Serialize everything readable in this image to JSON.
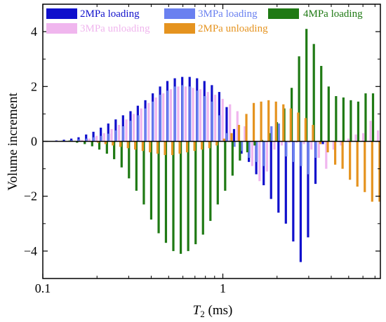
{
  "chart_data": {
    "type": "bar",
    "xlabel_italic": "T",
    "xlabel_sub": "2",
    "xlabel_unit": " (ms)",
    "ylabel": "Volume increment",
    "x_scale": "log",
    "xlim": [
      0.1,
      7.5
    ],
    "ylim": [
      -5,
      5
    ],
    "x_ticks": [
      {
        "value": 0.1,
        "label": "0.1"
      },
      {
        "value": 1,
        "label": "1"
      }
    ],
    "y_ticks": [
      {
        "value": -4,
        "label": "−4"
      },
      {
        "value": -2,
        "label": "−2"
      },
      {
        "value": 0,
        "label": "0"
      },
      {
        "value": 2,
        "label": "2"
      },
      {
        "value": 4,
        "label": "4"
      }
    ],
    "legend_position": "top",
    "series": [
      {
        "name": "2MPa loading",
        "color": "#1010cc",
        "x": [
          0.119,
          0.131,
          0.144,
          0.158,
          0.174,
          0.191,
          0.21,
          0.231,
          0.254,
          0.279,
          0.307,
          0.337,
          0.371,
          0.408,
          0.448,
          0.492,
          0.541,
          0.595,
          0.654,
          0.719,
          0.79,
          0.869,
          0.955,
          1.05,
          1.154,
          1.269,
          1.395,
          1.533,
          1.686,
          1.853,
          2.037,
          2.239,
          2.461,
          2.706,
          2.974,
          3.27,
          3.594
        ],
        "values": [
          0.03,
          0.06,
          0.1,
          0.15,
          0.25,
          0.35,
          0.5,
          0.65,
          0.8,
          0.95,
          1.1,
          1.3,
          1.5,
          1.75,
          2.0,
          2.2,
          2.3,
          2.35,
          2.35,
          2.3,
          2.2,
          2.05,
          1.8,
          1.25,
          0.45,
          -0.45,
          -0.75,
          -1.2,
          -1.6,
          -2.1,
          -2.6,
          -3.0,
          -3.65,
          -4.4,
          -3.5,
          -1.55,
          -0.1
        ]
      },
      {
        "name": "3MPa loading",
        "color": "#6a80f0",
        "x": [
          0.132,
          0.145,
          0.159,
          0.175,
          0.192,
          0.211,
          0.232,
          0.255,
          0.28,
          0.308,
          0.339,
          0.372,
          0.409,
          0.45,
          0.494,
          0.543,
          0.597,
          0.657,
          0.722,
          0.794,
          0.873,
          0.959,
          1.055,
          1.16,
          1.275,
          1.401,
          1.541,
          1.694,
          1.862,
          2.047,
          2.25,
          2.473,
          2.719,
          2.988,
          3.285
        ],
        "values": [
          0.02,
          0.04,
          0.07,
          0.1,
          0.15,
          0.2,
          0.28,
          0.4,
          0.55,
          0.75,
          0.95,
          1.2,
          1.45,
          1.7,
          1.85,
          2.0,
          2.05,
          2.0,
          1.85,
          1.65,
          1.45,
          0.95,
          0.3,
          -0.2,
          -0.35,
          -0.6,
          -0.75,
          -0.9,
          0.55,
          0.65,
          -0.55,
          -0.75,
          -0.9,
          -1.2,
          -0.6
        ]
      },
      {
        "name": "4MPa loading",
        "color": "#1f7a14",
        "x": [
          0.117,
          0.128,
          0.141,
          0.155,
          0.171,
          0.188,
          0.206,
          0.227,
          0.249,
          0.274,
          0.301,
          0.331,
          0.364,
          0.4,
          0.44,
          0.483,
          0.531,
          0.584,
          0.642,
          0.706,
          0.776,
          0.853,
          0.937,
          1.03,
          1.132,
          1.244,
          1.368,
          1.503,
          1.652,
          1.816,
          1.996,
          2.194,
          2.412,
          2.651,
          2.914,
          3.203,
          3.52,
          3.87,
          4.254,
          4.676,
          5.14,
          5.65,
          6.21,
          6.826,
          7.503
        ],
        "values": [
          0.01,
          0.02,
          0.03,
          -0.05,
          -0.1,
          -0.18,
          -0.3,
          -0.45,
          -0.65,
          -0.95,
          -1.35,
          -1.8,
          -2.3,
          -2.85,
          -3.35,
          -3.7,
          -4.0,
          -4.1,
          -4.0,
          -3.75,
          -3.4,
          -2.9,
          -2.3,
          -1.8,
          -1.25,
          -0.7,
          -0.4,
          -0.15,
          0.05,
          0.3,
          0.7,
          1.2,
          1.95,
          3.1,
          4.1,
          3.55,
          2.75,
          2.0,
          1.65,
          1.6,
          1.5,
          1.45,
          1.75,
          1.75,
          1.75
        ]
      },
      {
        "name": "3MPa unloading",
        "color": "#f0b6ee",
        "x": [
          0.165,
          0.181,
          0.199,
          0.219,
          0.241,
          0.265,
          0.291,
          0.32,
          0.352,
          0.387,
          0.425,
          0.467,
          0.514,
          0.565,
          0.621,
          0.683,
          0.75,
          0.825,
          0.907,
          0.997,
          1.096,
          1.205,
          1.324,
          1.456,
          1.6,
          1.759,
          1.934,
          2.126,
          2.337,
          2.569,
          2.824,
          3.104,
          3.413,
          3.751,
          4.124,
          4.533,
          4.984,
          5.478,
          6.022,
          6.62,
          7.277
        ],
        "values": [
          0.05,
          0.1,
          0.2,
          0.3,
          0.45,
          0.6,
          0.8,
          1.0,
          1.2,
          1.4,
          1.6,
          1.75,
          1.9,
          2.0,
          2.0,
          1.95,
          1.9,
          1.8,
          1.7,
          1.55,
          1.35,
          1.1,
          0.55,
          -0.9,
          -1.45,
          -1.1,
          -0.3,
          -0.15,
          -0.05,
          -0.05,
          -0.1,
          -0.3,
          -0.6,
          -1.0,
          -0.3,
          -0.15,
          0.1,
          0.25,
          0.3,
          0.75,
          0.4
        ]
      },
      {
        "name": "2MPa unloading",
        "color": "#e5931f",
        "x": [
          0.185,
          0.203,
          0.223,
          0.245,
          0.27,
          0.297,
          0.326,
          0.359,
          0.394,
          0.434,
          0.477,
          0.524,
          0.576,
          0.633,
          0.696,
          0.765,
          0.842,
          0.925,
          1.017,
          1.118,
          1.229,
          1.351,
          1.485,
          1.632,
          1.795,
          1.973,
          2.169,
          2.384,
          2.621,
          2.881,
          3.167,
          3.481,
          3.827,
          4.207,
          4.624,
          5.083,
          5.588,
          6.143,
          6.753,
          7.423
        ],
        "values": [
          -0.02,
          -0.05,
          -0.1,
          -0.15,
          -0.2,
          -0.25,
          -0.3,
          -0.35,
          -0.4,
          -0.45,
          -0.5,
          -0.5,
          -0.45,
          -0.4,
          -0.35,
          -0.3,
          -0.25,
          -0.15,
          0.1,
          0.3,
          0.6,
          1.0,
          1.4,
          1.45,
          1.5,
          1.45,
          1.35,
          1.2,
          1.05,
          0.85,
          0.6,
          -0.1,
          -0.4,
          -0.85,
          -1.0,
          -1.4,
          -1.65,
          -1.85,
          -2.2,
          -2.2
        ]
      }
    ]
  }
}
